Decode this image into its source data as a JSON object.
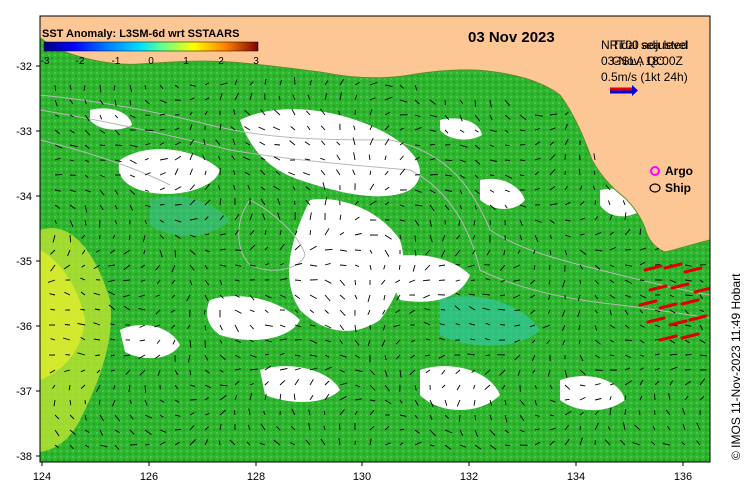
{
  "title": "SST Anomaly: L3SM-6d wrt SSTAARS",
  "date": "03 Nov 2023",
  "colorbar": {
    "ticks": [
      "-3",
      "-2",
      "-1",
      "0",
      "1",
      "2",
      "3"
    ],
    "colors": [
      "#00007f",
      "#0000ff",
      "#007fff",
      "#00ffff",
      "#7fff7f",
      "#ffff00",
      "#ff7f00",
      "#ff0000",
      "#7f0000"
    ]
  },
  "overlay": {
    "line1": "NRT00 adjusted",
    "line1b": "Tidal sea level",
    "line2": "03-Nov, 18:00Z",
    "line2b": "GSLA QC",
    "scale_label": "0.5m/s (1kt 24h)"
  },
  "legend": {
    "argo_label": "Argo",
    "ship_label": "Ship"
  },
  "axes": {
    "x_ticks": [
      "124",
      "126",
      "128",
      "130",
      "132",
      "134",
      "136"
    ],
    "y_ticks": [
      "-32",
      "-33",
      "-34",
      "-35",
      "-36",
      "-37",
      "-38"
    ]
  },
  "credit": "© IMOS 11-Nov-2023 11:49 Hobart",
  "colors": {
    "land": "#fdc795",
    "ocean_green": "#2eb82e",
    "no_data": "#ffffff"
  }
}
